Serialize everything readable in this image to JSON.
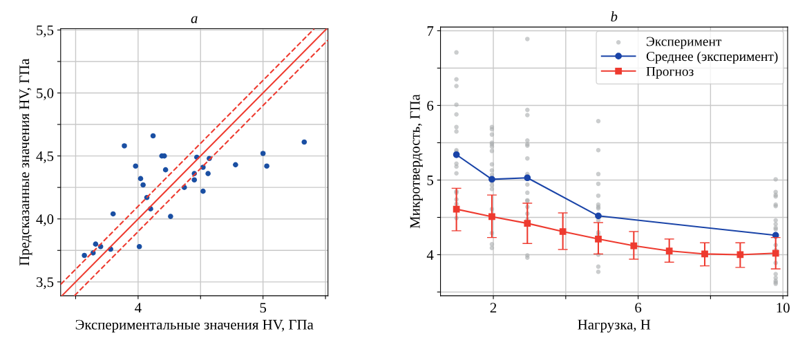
{
  "chart_data": [
    {
      "type": "scatter",
      "title": "a",
      "xlabel": "Экспериментальные значения HV, ГПа",
      "ylabel": "Предсказанные значения HV, ГПа",
      "xlim": [
        3.38,
        5.52
      ],
      "ylim": [
        3.39,
        5.51
      ],
      "xticks": [
        {
          "value": 3.5,
          "label": null
        },
        4,
        {
          "value": 4.5,
          "label": null
        },
        5,
        {
          "value": 5.5,
          "label": null
        }
      ],
      "yticks": [
        {
          "value": 3.5,
          "label": "3,5"
        },
        {
          "value": 3.75,
          "label": null
        },
        {
          "value": 4.0,
          "label": "4,0"
        },
        {
          "value": 4.25,
          "label": null
        },
        {
          "value": 4.5,
          "label": "4,5"
        },
        {
          "value": 4.75,
          "label": null
        },
        {
          "value": 5.0,
          "label": "5,0"
        },
        {
          "value": 5.25,
          "label": null
        },
        {
          "value": 5.5,
          "label": "5,5"
        }
      ],
      "grid": true,
      "legend": false,
      "series": [
        {
          "color": "#1a4fa3",
          "marker": "circle",
          "x": [
            3.57,
            3.64,
            3.66,
            3.7,
            3.78,
            3.8,
            3.89,
            3.98,
            4.01,
            4.02,
            4.04,
            4.07,
            4.1,
            4.12,
            4.19,
            4.21,
            4.22,
            4.26,
            4.37,
            4.45,
            4.45,
            4.47,
            4.52,
            4.52,
            4.56,
            4.57,
            4.78,
            5.0,
            5.03,
            5.33
          ],
          "values": [
            3.71,
            3.73,
            3.8,
            3.78,
            3.76,
            4.04,
            4.58,
            4.42,
            3.78,
            4.32,
            4.27,
            4.17,
            4.08,
            4.66,
            4.5,
            4.5,
            4.39,
            4.02,
            4.25,
            4.31,
            4.36,
            4.49,
            4.41,
            4.22,
            4.36,
            4.48,
            4.43,
            4.52,
            4.42,
            4.61
          ]
        },
        {
          "type": "line",
          "color": "#ee3a2f",
          "line_style": "solid",
          "marker": "none",
          "x": [
            3.39,
            5.51
          ],
          "values": [
            3.39,
            5.51
          ]
        },
        {
          "type": "line",
          "color": "#ee3a2f",
          "line_style": "dashed",
          "marker": "none",
          "x": [
            3.38,
            5.41
          ],
          "values": [
            3.48,
            5.51
          ]
        },
        {
          "type": "line",
          "color": "#ee3a2f",
          "line_style": "dashed",
          "marker": "none",
          "x": [
            3.49,
            5.52
          ],
          "values": [
            3.39,
            5.42
          ]
        }
      ]
    },
    {
      "type": "scatter",
      "title": "b",
      "xlabel": "Нагрузка, Н",
      "ylabel": "Микротвердость, ГПа",
      "xlim": [
        0.54,
        10.13
      ],
      "ylim": [
        3.45,
        7.05
      ],
      "xticks": [
        2,
        {
          "value": 4,
          "label": null
        },
        6,
        {
          "value": 8,
          "label": null
        },
        10
      ],
      "yticks": [
        {
          "value": 3.5,
          "label": null
        },
        4,
        {
          "value": 4.5,
          "label": null
        },
        5,
        {
          "value": 5.5,
          "label": null
        },
        6,
        {
          "value": 6.5,
          "label": null
        },
        7
      ],
      "grid": true,
      "legend": "top right",
      "series": [
        {
          "name": "Эксперимент",
          "color": "#a9abad",
          "marker": "circle",
          "x": [
            0.98,
            0.98,
            0.98,
            0.98,
            0.98,
            0.98,
            0.98,
            0.98,
            0.98,
            0.98,
            0.98,
            0.98,
            0.98,
            0.98,
            0.98,
            0.98,
            0.98,
            1.96,
            1.96,
            1.96,
            1.96,
            1.96,
            1.96,
            1.96,
            1.96,
            1.96,
            1.96,
            1.96,
            1.96,
            1.96,
            1.96,
            1.96,
            1.96,
            1.96,
            2.94,
            2.94,
            2.94,
            2.94,
            2.94,
            2.94,
            2.94,
            2.94,
            2.94,
            2.94,
            2.94,
            2.94,
            2.94,
            2.94,
            2.94,
            2.94,
            2.94,
            2.94,
            4.9,
            4.9,
            4.9,
            4.9,
            4.9,
            4.9,
            4.9,
            4.9,
            4.9,
            4.9,
            4.9,
            4.9,
            4.9,
            4.9,
            9.8,
            9.8,
            9.8,
            9.8,
            9.8,
            9.8,
            9.8,
            9.8,
            9.8,
            9.8,
            9.8,
            9.8,
            9.8,
            9.8,
            9.8,
            9.8,
            9.8,
            9.8
          ],
          "values": [
            6.71,
            6.35,
            6.26,
            6.01,
            5.88,
            5.71,
            5.65,
            5.4,
            5.38,
            5.22,
            5.18,
            5.09,
            4.85,
            4.83,
            4.74,
            4.68,
            4.49,
            5.71,
            5.68,
            5.61,
            5.5,
            5.48,
            5.45,
            5.39,
            5.21,
            5.13,
            5.07,
            4.98,
            4.93,
            4.88,
            4.61,
            4.29,
            4.14,
            4.09,
            6.89,
            5.94,
            5.87,
            5.53,
            5.48,
            5.46,
            5.29,
            5.08,
            5.05,
            4.94,
            4.83,
            4.73,
            4.72,
            4.64,
            4.55,
            4.47,
            3.99,
            3.96,
            5.79,
            5.4,
            5.08,
            4.95,
            4.79,
            4.67,
            4.64,
            4.62,
            4.46,
            4.3,
            4.27,
            4.0,
            3.84,
            3.77,
            5.01,
            4.84,
            4.8,
            4.78,
            4.67,
            4.65,
            4.46,
            4.41,
            4.36,
            4.34,
            4.13,
            4.06,
            3.89,
            3.74,
            3.69,
            3.65,
            3.63,
            3.61
          ]
        },
        {
          "type": "line",
          "name": "Среднее (эксперимент)",
          "color": "#1a44a8",
          "marker": "circle",
          "line_style": "solid",
          "x": [
            0.98,
            1.96,
            2.94,
            4.9,
            9.8
          ],
          "values": [
            5.34,
            5.01,
            5.03,
            4.52,
            4.26
          ]
        },
        {
          "type": "line",
          "name": "Прогноз",
          "color": "#ee3a2f",
          "marker": "square",
          "line_style": "solid",
          "x": [
            0.98,
            1.96,
            2.94,
            3.92,
            4.9,
            5.88,
            6.86,
            7.84,
            8.82,
            9.8
          ],
          "values": [
            4.61,
            4.51,
            4.42,
            4.31,
            4.21,
            4.12,
            4.05,
            4.01,
            4.0,
            4.02
          ],
          "errors": [
            [
              4.32,
              4.89
            ],
            [
              4.23,
              4.8
            ],
            [
              4.15,
              4.69
            ],
            [
              4.07,
              4.56
            ],
            [
              4.01,
              4.43
            ],
            [
              3.94,
              4.31
            ],
            [
              3.9,
              4.21
            ],
            [
              3.85,
              4.16
            ],
            [
              3.83,
              4.16
            ],
            [
              3.81,
              4.23
            ]
          ]
        }
      ]
    }
  ]
}
